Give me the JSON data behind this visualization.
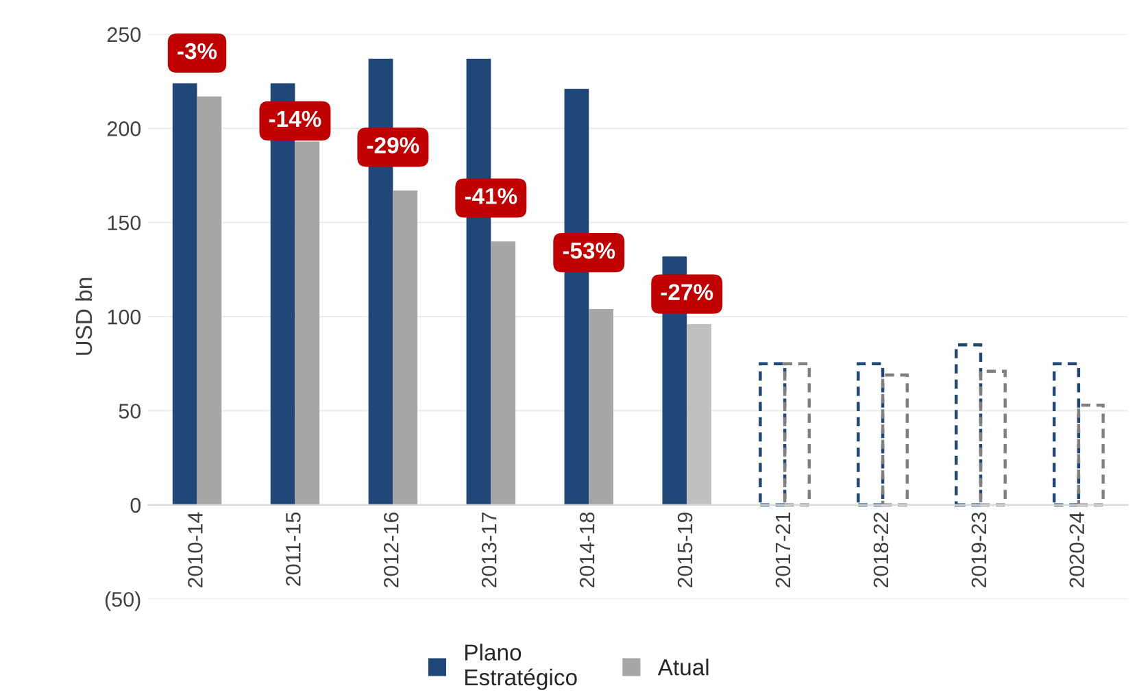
{
  "chart_data": {
    "type": "bar",
    "ylabel": "USD bn",
    "categories": [
      "2010-14",
      "2011-15",
      "2012-16",
      "2013-17",
      "2014-18",
      "2015-19",
      "2017-21",
      "2018-22",
      "2019-23",
      "2020-24"
    ],
    "series": [
      {
        "name": "Plano\nEstratégico",
        "color": "#1f4778",
        "values": [
          224,
          224,
          237,
          237,
          221,
          132,
          null,
          null,
          null,
          null
        ]
      },
      {
        "name": "Atual",
        "color": "#a6a6a6",
        "colors": [
          "#a6a6a6",
          "#a6a6a6",
          "#a6a6a6",
          "#a6a6a6",
          "#a6a6a6",
          "#c0c0c0",
          "#a6a6a6",
          "#a6a6a6",
          "#a6a6a6",
          "#a6a6a6"
        ],
        "values": [
          217,
          193,
          167,
          140,
          104,
          96,
          null,
          null,
          null,
          null
        ]
      },
      {
        "color": "#1f4778",
        "line_style": "dashed",
        "values": [
          null,
          null,
          null,
          null,
          null,
          null,
          75,
          75,
          85,
          75
        ]
      },
      {
        "color": "#808080",
        "line_style": "dashed",
        "values": [
          null,
          null,
          null,
          null,
          null,
          null,
          75,
          69,
          71,
          53
        ]
      }
    ],
    "ylim": [
      -50,
      250
    ],
    "yticks": [
      {
        "value": -50,
        "label": "(50)"
      },
      0,
      50,
      100,
      150,
      200,
      250
    ],
    "grid": "y",
    "legend": "bottom",
    "annotations": [
      {
        "text": "-3%",
        "x": "2010-14",
        "y": 240
      },
      {
        "text": "-14%",
        "x": "2011-15",
        "y": 204
      },
      {
        "text": "-29%",
        "x": "2012-16",
        "y": 190
      },
      {
        "text": "-41%",
        "x": "2013-17",
        "y": 163
      },
      {
        "text": "-53%",
        "x": "2014-18",
        "y": 134
      },
      {
        "text": "-27%",
        "x": "2015-19",
        "y": 112
      }
    ]
  }
}
